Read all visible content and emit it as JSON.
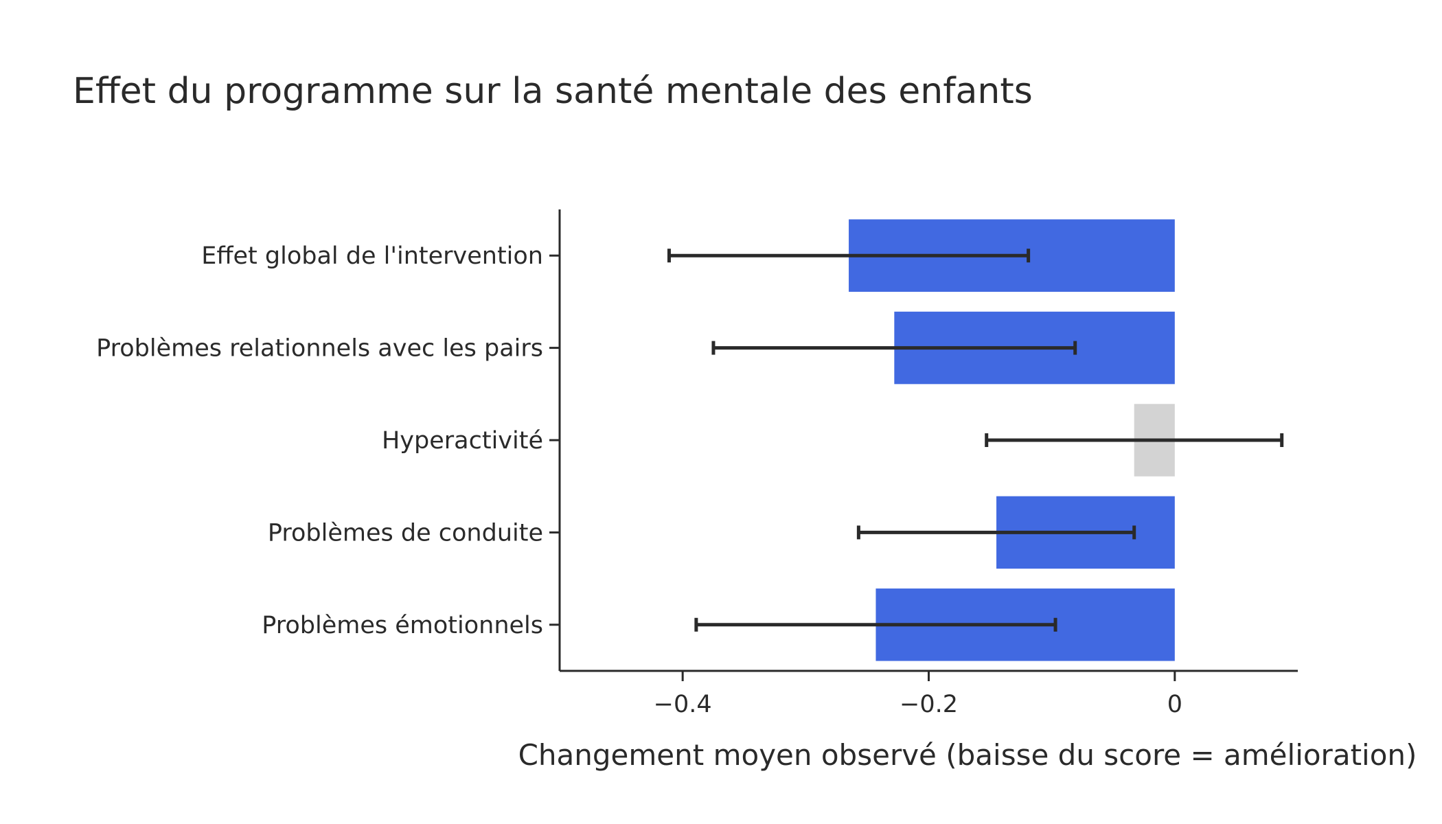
{
  "chart_data": {
    "type": "bar",
    "orientation": "horizontal",
    "title": "Effet du programme sur la santé mentale des enfants",
    "xlabel": "Changement moyen observé (baisse du score = amélioration)",
    "ylabel": "",
    "xlim": [
      -0.5,
      0.1
    ],
    "xticks": [
      -0.4,
      -0.2,
      0
    ],
    "xtick_labels": [
      "−0.4",
      "−0.2",
      "0"
    ],
    "grid": false,
    "legend": "none",
    "categories": [
      "Effet global de l'intervention",
      "Problèmes relationnels avec les pairs",
      "Hyperactivité",
      "Problèmes de conduite",
      "Problèmes émotionnels"
    ],
    "values": [
      -0.265,
      -0.228,
      -0.033,
      -0.145,
      -0.243
    ],
    "error_low": [
      -0.411,
      -0.375,
      -0.153,
      -0.257,
      -0.389
    ],
    "error_high": [
      -0.119,
      -0.081,
      0.087,
      -0.033,
      -0.097
    ],
    "bar_colors": [
      "#4169e1",
      "#4169e1",
      "#d3d3d3",
      "#4169e1",
      "#4169e1"
    ],
    "error_bar_color": "#2a2a2a"
  }
}
